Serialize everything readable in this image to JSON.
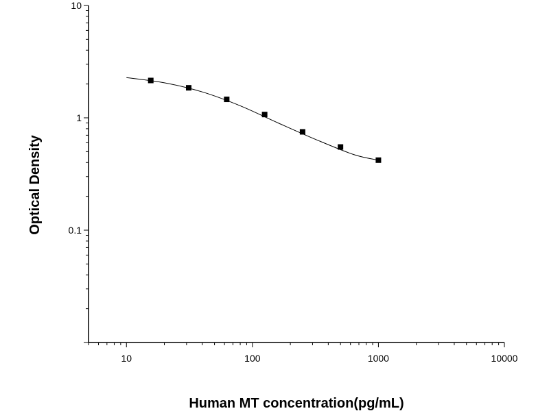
{
  "chart_data": {
    "type": "scatter",
    "title": "",
    "xlabel": "Human MT concentration(pg/mL)",
    "ylabel": "Optical Density",
    "xscale": "log",
    "yscale": "log",
    "xlim": [
      5,
      10000
    ],
    "ylim": [
      0.01,
      10
    ],
    "x_ticks": [
      10,
      100,
      1000,
      10000
    ],
    "x_tick_labels": [
      "10",
      "100",
      "1000",
      "10000"
    ],
    "y_ticks": [
      0.1,
      1,
      10
    ],
    "y_tick_labels": [
      "0.1",
      "1",
      "10"
    ],
    "grid": false,
    "legend": "none",
    "marker": "square",
    "color": "#000000",
    "series": [
      {
        "x": [
          15.6,
          31.2,
          62.5,
          125,
          250,
          500,
          1000
        ],
        "y": [
          2.15,
          1.85,
          1.46,
          1.07,
          0.75,
          0.55,
          0.42
        ]
      }
    ],
    "fit_curve": {
      "x": [
        10,
        20,
        40,
        80,
        160,
        320,
        640,
        1000
      ],
      "y": [
        2.28,
        2.05,
        1.7,
        1.28,
        0.9,
        0.64,
        0.47,
        0.42
      ]
    }
  }
}
